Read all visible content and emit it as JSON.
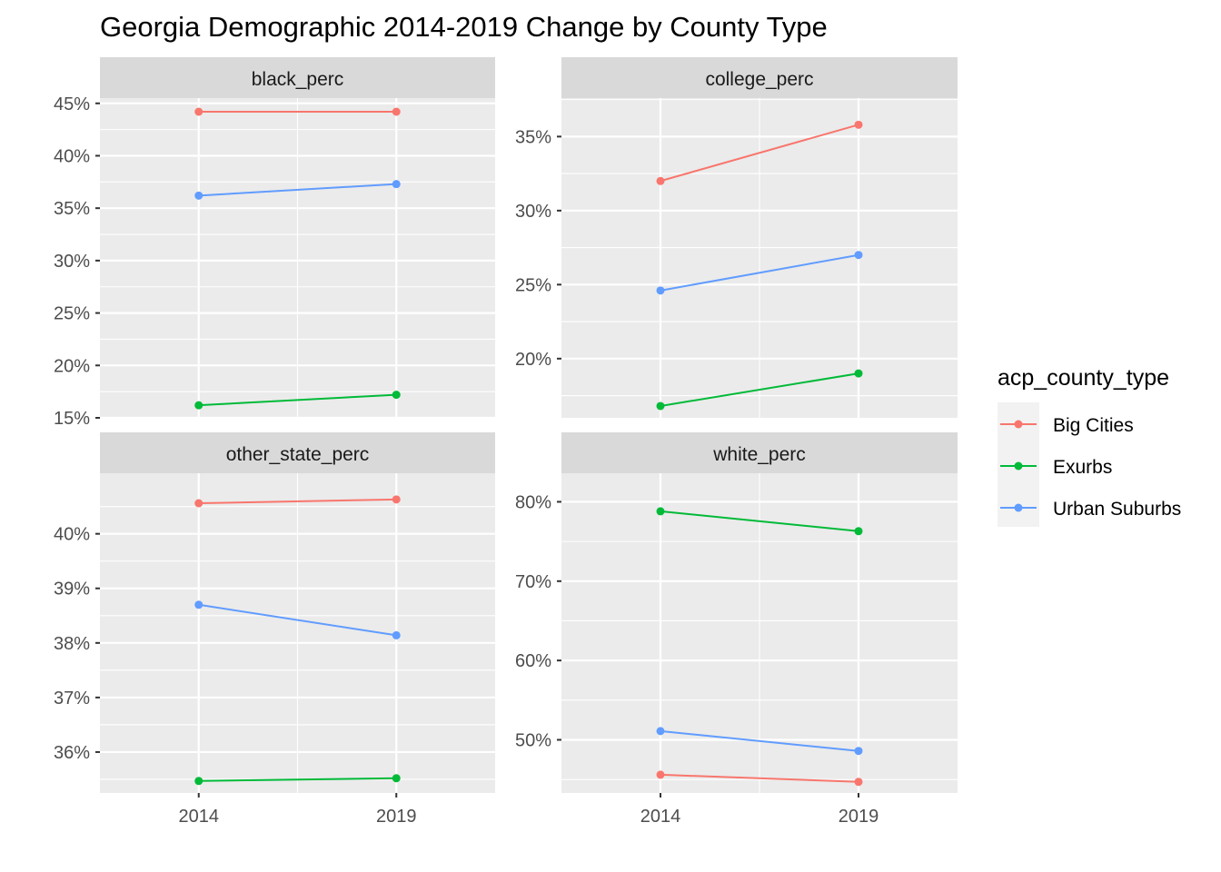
{
  "chart_data": {
    "type": "line",
    "title": "Georgia Demographic 2014-2019 Change by County Type",
    "x": [
      2014,
      2019
    ],
    "x_tick_labels": [
      "2014",
      "2019"
    ],
    "legend": {
      "title": "acp_county_type",
      "placement": "right",
      "entries": [
        "Big Cities",
        "Exurbs",
        "Urban Suburbs"
      ]
    },
    "colors": {
      "Big Cities": "#F8766D",
      "Exurbs": "#00BA38",
      "Urban Suburbs": "#619CFF",
      "panel_bg": "#EBEBEB",
      "strip_bg": "#D9D9D9",
      "grid": "#FFFFFF"
    },
    "grid": true,
    "facets": [
      {
        "name": "black_perc",
        "ylim": [
          0.15,
          0.455
        ],
        "y_ticks": [
          0.15,
          0.2,
          0.25,
          0.3,
          0.35,
          0.4,
          0.45
        ],
        "y_tick_labels": [
          "15%",
          "20%",
          "25%",
          "30%",
          "35%",
          "40%",
          "45%"
        ],
        "series": [
          {
            "name": "Big Cities",
            "values": [
              0.442,
              0.442
            ]
          },
          {
            "name": "Exurbs",
            "values": [
              0.162,
              0.172
            ]
          },
          {
            "name": "Urban Suburbs",
            "values": [
              0.362,
              0.373
            ]
          }
        ]
      },
      {
        "name": "college_perc",
        "ylim": [
          0.16,
          0.376
        ],
        "y_ticks": [
          0.2,
          0.25,
          0.3,
          0.35
        ],
        "y_tick_labels": [
          "20%",
          "25%",
          "30%",
          "35%"
        ],
        "series": [
          {
            "name": "Big Cities",
            "values": [
              0.32,
              0.358
            ]
          },
          {
            "name": "Exurbs",
            "values": [
              0.168,
              0.19
            ]
          },
          {
            "name": "Urban Suburbs",
            "values": [
              0.246,
              0.27
            ]
          }
        ]
      },
      {
        "name": "other_state_perc",
        "ylim": [
          0.3525,
          0.4111
        ],
        "y_ticks": [
          0.36,
          0.37,
          0.38,
          0.39,
          0.4
        ],
        "y_tick_labels": [
          "36%",
          "37%",
          "38%",
          "39%",
          "40%"
        ],
        "series": [
          {
            "name": "Big Cities",
            "values": [
              0.4056,
              0.4063
            ]
          },
          {
            "name": "Exurbs",
            "values": [
              0.3547,
              0.3552
            ]
          },
          {
            "name": "Urban Suburbs",
            "values": [
              0.387,
              0.3814
            ]
          }
        ]
      },
      {
        "name": "white_perc",
        "ylim": [
          0.433,
          0.836
        ],
        "y_ticks": [
          0.5,
          0.6,
          0.7,
          0.8
        ],
        "y_tick_labels": [
          "50%",
          "60%",
          "70%",
          "80%"
        ],
        "series": [
          {
            "name": "Big Cities",
            "values": [
              0.456,
              0.447
            ]
          },
          {
            "name": "Exurbs",
            "values": [
              0.788,
              0.763
            ]
          },
          {
            "name": "Urban Suburbs",
            "values": [
              0.511,
              0.486
            ]
          }
        ]
      }
    ]
  }
}
